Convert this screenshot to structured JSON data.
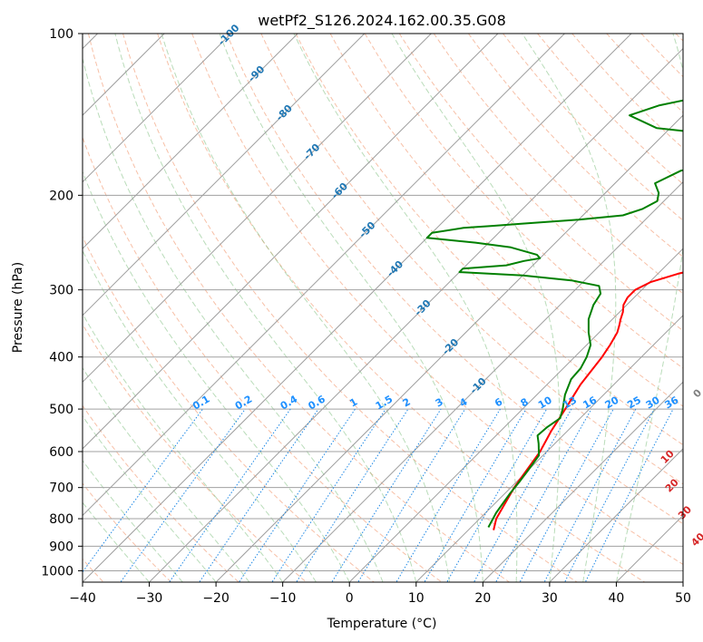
{
  "chart_data": {
    "type": "line",
    "title": "wetPf2_S126.2024.162.00.35.G08",
    "xlabel": "Temperature (°C)",
    "ylabel": "Pressure (hPa)",
    "xlim": [
      -40,
      50
    ],
    "ylim": [
      1050,
      100
    ],
    "y_scale": "log",
    "grid": true,
    "x_ticks": [
      -40,
      -30,
      -20,
      -10,
      0,
      10,
      20,
      30,
      40,
      50
    ],
    "y_ticks": [
      100,
      200,
      300,
      400,
      500,
      600,
      700,
      800,
      900,
      1000
    ],
    "isotherm_labels": [
      -100,
      -90,
      -80,
      -70,
      -60,
      -50,
      -40,
      -30,
      -20,
      -10
    ],
    "mixing_ratio_labels": [
      "0.1",
      "0.2",
      "0.4",
      "0.6",
      "1",
      "1.5",
      "2",
      "3",
      "4",
      "6",
      "8",
      "10",
      "13",
      "16",
      "20",
      "25",
      "30",
      "36"
    ],
    "dry_adiabat_labels": [
      "0",
      "10",
      "20",
      "30",
      "40"
    ],
    "series": [
      {
        "color": "#ff0000",
        "pressure": [
          840,
          800,
          700,
          600,
          550,
          500,
          450,
          400,
          380,
          360,
          350,
          340,
          330,
          320,
          310,
          300,
          290,
          280,
          270,
          260,
          250,
          240,
          230,
          220,
          210,
          200,
          190,
          180,
          170,
          160,
          150,
          140,
          130,
          120,
          110,
          100
        ],
        "temperature": [
          13.8,
          12.5,
          10.5,
          9.0,
          7.6,
          6.4,
          5.0,
          4.1,
          3.5,
          2.7,
          2.0,
          1.2,
          0.5,
          -0.5,
          -1.0,
          -1.0,
          0.2,
          3.0,
          7.0,
          11.5,
          14.5,
          17.5,
          19.5,
          21.5,
          23.0,
          24.0,
          25.0,
          25.7,
          26.0,
          26.5,
          27.7,
          29.5,
          30.0,
          30.5,
          31.0,
          32.0
        ]
      },
      {
        "color": "#008000",
        "pressure": [
          830,
          780,
          720,
          680,
          650,
          610,
          580,
          560,
          540,
          520,
          500,
          470,
          440,
          420,
          400,
          380,
          360,
          340,
          320,
          305,
          295,
          288,
          282,
          278,
          274,
          270,
          265,
          262,
          258,
          250,
          245,
          240,
          235,
          230,
          228,
          226,
          222,
          218,
          212,
          205,
          198,
          190,
          180,
          172,
          165,
          158,
          155,
          150,
          142,
          136,
          130,
          125,
          120,
          115,
          112,
          108,
          104,
          100
        ],
        "temperature": [
          12.6,
          11.6,
          10.8,
          10.4,
          10.0,
          9.4,
          7.6,
          6.2,
          6.4,
          7.0,
          6.0,
          4.2,
          2.8,
          2.6,
          1.8,
          0.6,
          -1.6,
          -3.6,
          -5.0,
          -5.6,
          -7.0,
          -12.0,
          -20.0,
          -30.0,
          -30.0,
          -24.0,
          -22.0,
          -20.0,
          -21.0,
          -26.0,
          -32.0,
          -40.0,
          -40.0,
          -36.0,
          -32.0,
          -28.0,
          -20.0,
          -14.0,
          -12.0,
          -11.0,
          -12.0,
          -14.0,
          -12.0,
          -6.0,
          -4.0,
          -5.0,
          -10.0,
          -22.0,
          -28.0,
          -25.0,
          -19.0,
          -16.0,
          -16.0,
          -14.0,
          -13.0,
          -11.0,
          -9.0,
          -7.0
        ]
      }
    ]
  }
}
